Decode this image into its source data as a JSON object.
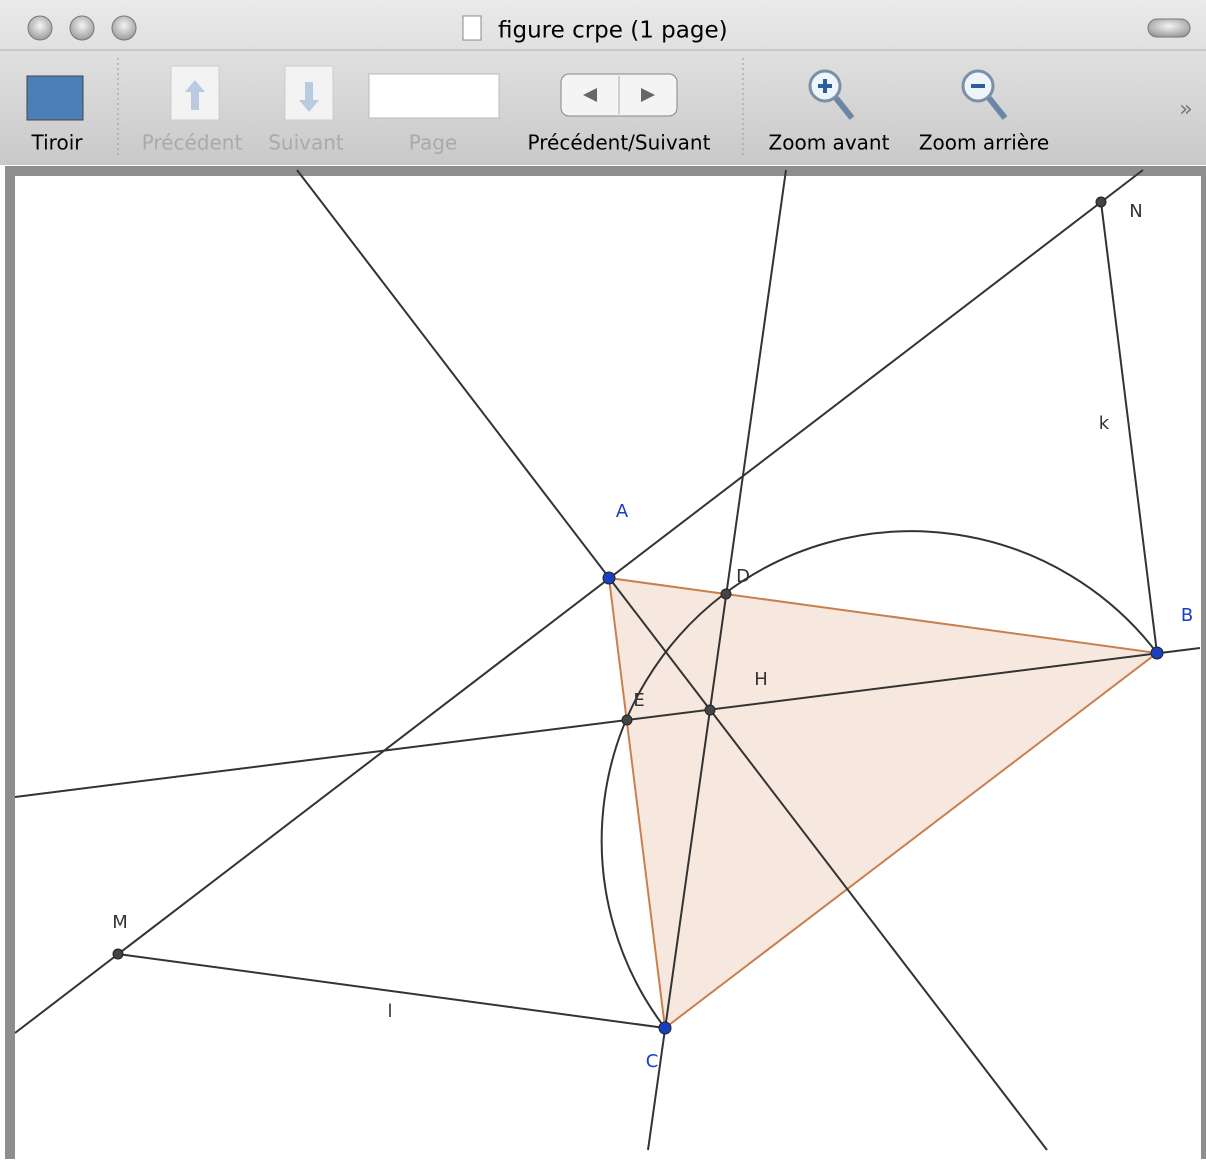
{
  "window": {
    "title": "figure crpe (1 page)"
  },
  "toolbar": {
    "items": [
      "Tiroir",
      "Précédent",
      "Suivant",
      "Page",
      "Précédent/Suivant",
      "Zoom avant",
      "Zoom arrière"
    ]
  },
  "figure": {
    "points": [
      "A",
      "B",
      "C",
      "D",
      "E",
      "H",
      "N",
      "M"
    ],
    "segments": [
      "k",
      "l"
    ]
  }
}
